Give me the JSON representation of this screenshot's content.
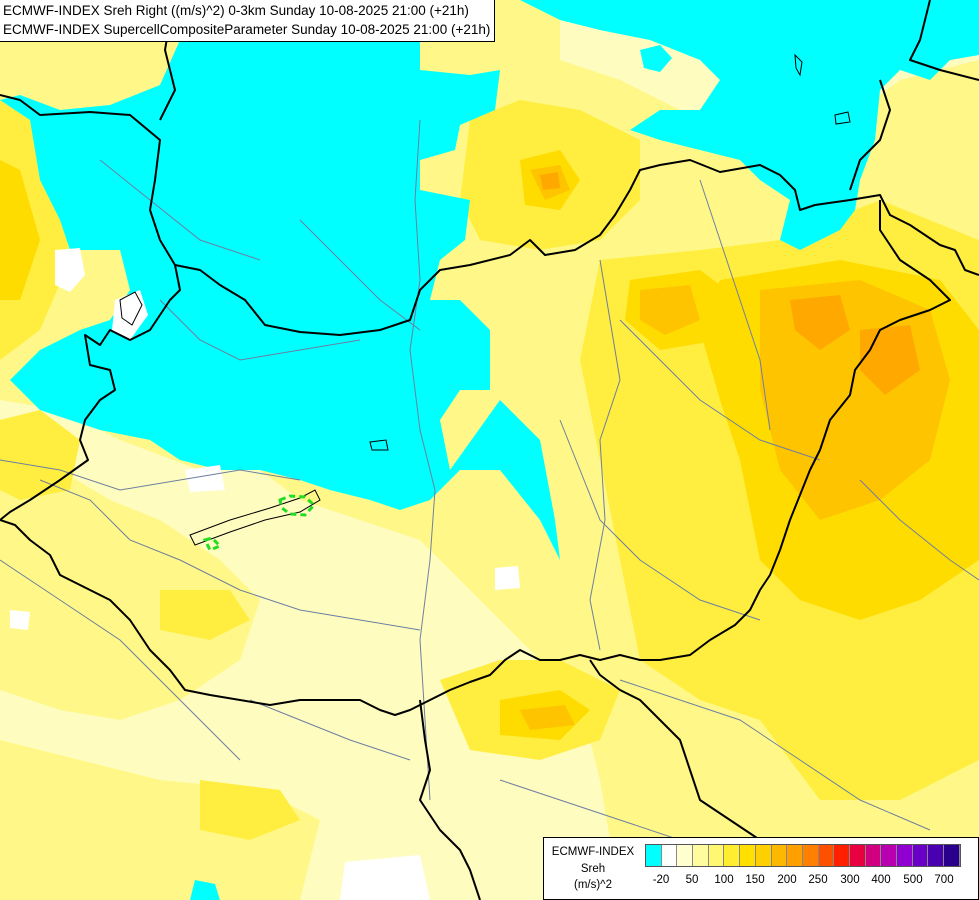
{
  "header": {
    "line1": "ECMWF-INDEX Sreh Right ((m/s)^2) 0-3km Sunday 10-08-2025 21:00 (+21h)",
    "line2": "ECMWF-INDEX SupercellCompositeParameter Sunday 10-08-2025 21:00 (+21h)"
  },
  "legend": {
    "title1": "ECMWF-INDEX",
    "title2": "Sreh",
    "unit": "(m/s)^2",
    "colors": [
      "#00ffff",
      "#ffffff",
      "#ffffd0",
      "#fffca0",
      "#fff870",
      "#ffee30",
      "#ffe000",
      "#ffd000",
      "#ffb800",
      "#ffa000",
      "#ff8000",
      "#ff5000",
      "#ff2000",
      "#e80040",
      "#d00080",
      "#b800b0",
      "#9000d0",
      "#6a00c8",
      "#4800b0",
      "#28008c"
    ],
    "ticks": [
      "-20",
      "50",
      "100",
      "150",
      "200",
      "250",
      "300",
      "400",
      "500",
      "700"
    ]
  },
  "map": {
    "fields": {
      "cyan": "#00ffff",
      "white": "#ffffff",
      "pale": "#fffcc0",
      "yellow1": "#fff888",
      "yellow2": "#ffee40",
      "yellow3": "#ffdc00",
      "orange1": "#ffc400",
      "orange2": "#ffa800"
    },
    "scp_contour_color": "#22dd22",
    "border_color": "#000000",
    "river_color": "#6d7fa0"
  }
}
